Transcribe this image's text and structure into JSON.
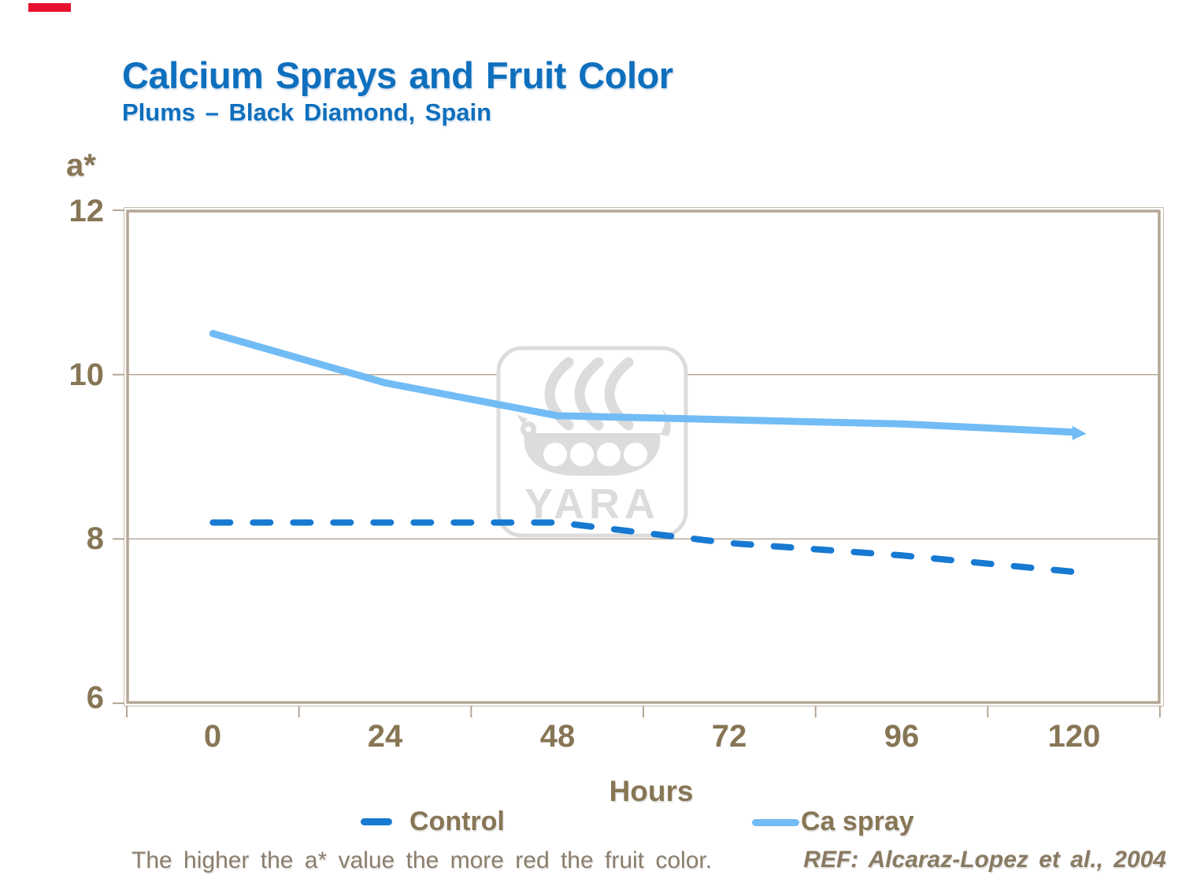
{
  "page": {
    "background": "#ffffff"
  },
  "brand_mark": {
    "color": "#e8112d"
  },
  "header": {
    "title": "Calcium Sprays and Fruit Color",
    "subtitle": "Plums – Black Diamond, Spain",
    "title_color": "#0e6fbd"
  },
  "chart_data": {
    "type": "line",
    "title": "Calcium Sprays and Fruit Color",
    "subtitle": "Plums – Black Diamond, Spain",
    "x_label": "Hours",
    "y_label": "a*",
    "categories": [
      0,
      24,
      48,
      72,
      96,
      120
    ],
    "x_tick_labels": [
      "0",
      "24",
      "48",
      "72",
      "96",
      "120"
    ],
    "y_ticks": [
      12,
      10,
      8,
      6
    ],
    "y_tick_labels": [
      "12",
      "10",
      "8",
      "6"
    ],
    "ylim": [
      6,
      12
    ],
    "gridlines_at": [
      10,
      8
    ],
    "grid": true,
    "legend_position": "bottom",
    "series": [
      {
        "name": "Control",
        "values": [
          8.2,
          8.2,
          8.2,
          7.95,
          7.8,
          7.6
        ],
        "color": "#1779d1",
        "style": "dashed"
      },
      {
        "name": "Ca spray",
        "values": [
          10.5,
          9.9,
          9.5,
          9.45,
          9.4,
          9.3
        ],
        "color": "#72bcf5",
        "style": "solid",
        "arrow_end": true
      }
    ],
    "watermark": "YARA",
    "axis_color": "#b5a796",
    "gridline_color": "#b2a494",
    "label_color": "#877655"
  },
  "footer": {
    "note": "The higher the a* value the more red the fruit color.",
    "reference": "REF: Alcaraz-Lopez et al., 2004"
  }
}
